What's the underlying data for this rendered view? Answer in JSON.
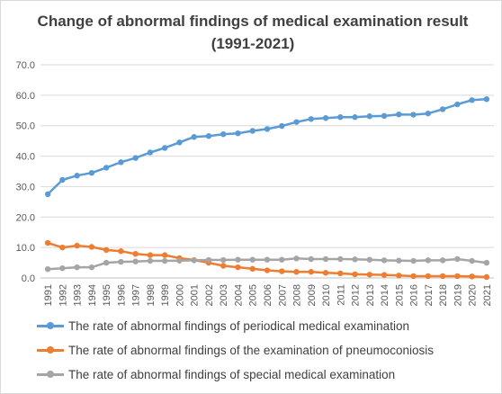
{
  "chart_data": {
    "type": "line",
    "title": "Change of abnormal findings of medical examination result (1991-2021)",
    "x": [
      "1991",
      "1992",
      "1993",
      "1994",
      "1995",
      "1996",
      "1997",
      "1998",
      "1999",
      "2000",
      "2001",
      "2002",
      "2003",
      "2004",
      "2005",
      "2006",
      "2007",
      "2008",
      "2009",
      "2010",
      "2011",
      "2012",
      "2013",
      "2014",
      "2015",
      "2016",
      "2017",
      "2018",
      "2019",
      "2020",
      "2021"
    ],
    "ylim": [
      0,
      70
    ],
    "y_ticks": [
      "0.0",
      "10.0",
      "20.0",
      "30.0",
      "40.0",
      "50.0",
      "60.0",
      "70.0"
    ],
    "grid": true,
    "legend_position": "bottom",
    "series": [
      {
        "name": "The rate of abnormal findings of periodical medical examination",
        "color": "#5b9bd5",
        "values": [
          27.5,
          32.2,
          33.6,
          34.5,
          36.2,
          38.0,
          39.4,
          41.2,
          42.7,
          44.5,
          46.3,
          46.6,
          47.2,
          47.5,
          48.3,
          48.9,
          49.9,
          51.2,
          52.2,
          52.5,
          52.8,
          52.8,
          53.1,
          53.2,
          53.7,
          53.6,
          54.0,
          55.4,
          57.0,
          58.4,
          58.7
        ]
      },
      {
        "name": "The rate of abnormal findings of the examination of pneumoconiosis",
        "color": "#ed7d31",
        "values": [
          11.5,
          10.0,
          10.6,
          10.2,
          9.2,
          8.8,
          7.9,
          7.5,
          7.5,
          6.5,
          5.9,
          5.0,
          4.0,
          3.5,
          3.0,
          2.5,
          2.2,
          2.0,
          2.0,
          1.7,
          1.5,
          1.2,
          1.1,
          1.0,
          0.8,
          0.6,
          0.6,
          0.6,
          0.6,
          0.5,
          0.3
        ]
      },
      {
        "name": "The rate of abnormal findings of special medical examination",
        "color": "#a5a5a5",
        "values": [
          2.9,
          3.2,
          3.5,
          3.5,
          5.0,
          5.3,
          5.4,
          5.6,
          5.6,
          5.7,
          5.8,
          5.9,
          5.9,
          6.0,
          6.0,
          6.0,
          6.0,
          6.4,
          6.2,
          6.2,
          6.2,
          6.1,
          6.0,
          5.8,
          5.7,
          5.6,
          5.8,
          5.8,
          6.2,
          5.6,
          5.0
        ]
      }
    ]
  }
}
